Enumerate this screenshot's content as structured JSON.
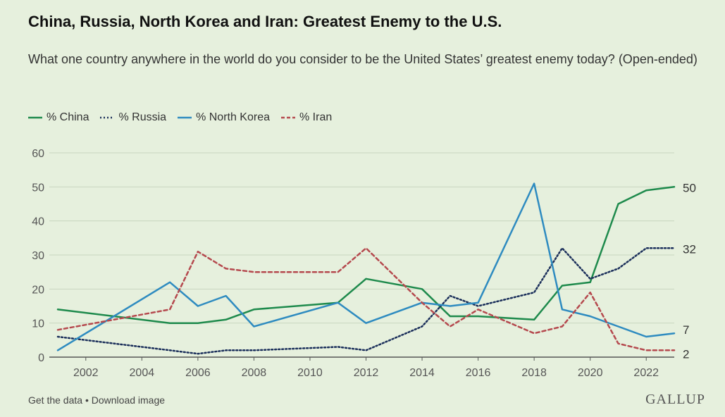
{
  "header": {
    "title": "China, Russia, North Korea and Iran: Greatest Enemy to the U.S.",
    "subtitle": "What one country anywhere in the world do you consider to be the United States’ greatest enemy today? (Open-ended)"
  },
  "footer": {
    "get_data": "Get the data",
    "separator": "•",
    "download": "Download image",
    "brand": "GALLUP"
  },
  "chart_data": {
    "type": "line",
    "xlim": [
      2001,
      2023
    ],
    "ylim": [
      0,
      60
    ],
    "x_ticks": [
      2002,
      2004,
      2006,
      2008,
      2010,
      2012,
      2014,
      2016,
      2018,
      2020,
      2022
    ],
    "y_ticks": [
      0,
      10,
      20,
      30,
      40,
      50,
      60
    ],
    "grid": true,
    "legend_position": "top-left",
    "series": [
      {
        "name": "% China",
        "color": "#1e8a4c",
        "style": "solid",
        "x": [
          2001,
          2005,
          2006,
          2007,
          2008,
          2011,
          2012,
          2014,
          2015,
          2016,
          2018,
          2019,
          2020,
          2021,
          2022,
          2023
        ],
        "values": [
          14,
          10,
          10,
          11,
          14,
          16,
          23,
          20,
          12,
          12,
          11,
          21,
          22,
          45,
          49,
          50
        ],
        "end_label": "50"
      },
      {
        "name": "% Russia",
        "color": "#1a2e5a",
        "style": "dotted",
        "x": [
          2001,
          2005,
          2006,
          2007,
          2008,
          2011,
          2012,
          2014,
          2015,
          2016,
          2018,
          2019,
          2020,
          2021,
          2022,
          2023
        ],
        "values": [
          6,
          2,
          1,
          2,
          2,
          3,
          2,
          9,
          18,
          15,
          19,
          32,
          23,
          26,
          32,
          32
        ],
        "end_label": "32"
      },
      {
        "name": "% North Korea",
        "color": "#2e8bc0",
        "style": "solid",
        "x": [
          2001,
          2005,
          2006,
          2007,
          2008,
          2011,
          2012,
          2014,
          2015,
          2016,
          2018,
          2019,
          2020,
          2021,
          2022,
          2023
        ],
        "values": [
          2,
          22,
          15,
          18,
          9,
          16,
          10,
          16,
          15,
          16,
          51,
          14,
          12,
          9,
          6,
          7
        ],
        "end_label": "7"
      },
      {
        "name": "% Iran",
        "color": "#b5494e",
        "style": "dashed",
        "x": [
          2001,
          2005,
          2006,
          2007,
          2008,
          2011,
          2012,
          2014,
          2015,
          2016,
          2018,
          2019,
          2020,
          2021,
          2022,
          2023
        ],
        "values": [
          8,
          14,
          31,
          26,
          25,
          25,
          32,
          16,
          9,
          14,
          7,
          9,
          19,
          4,
          2,
          2
        ],
        "end_label": "2"
      }
    ]
  }
}
